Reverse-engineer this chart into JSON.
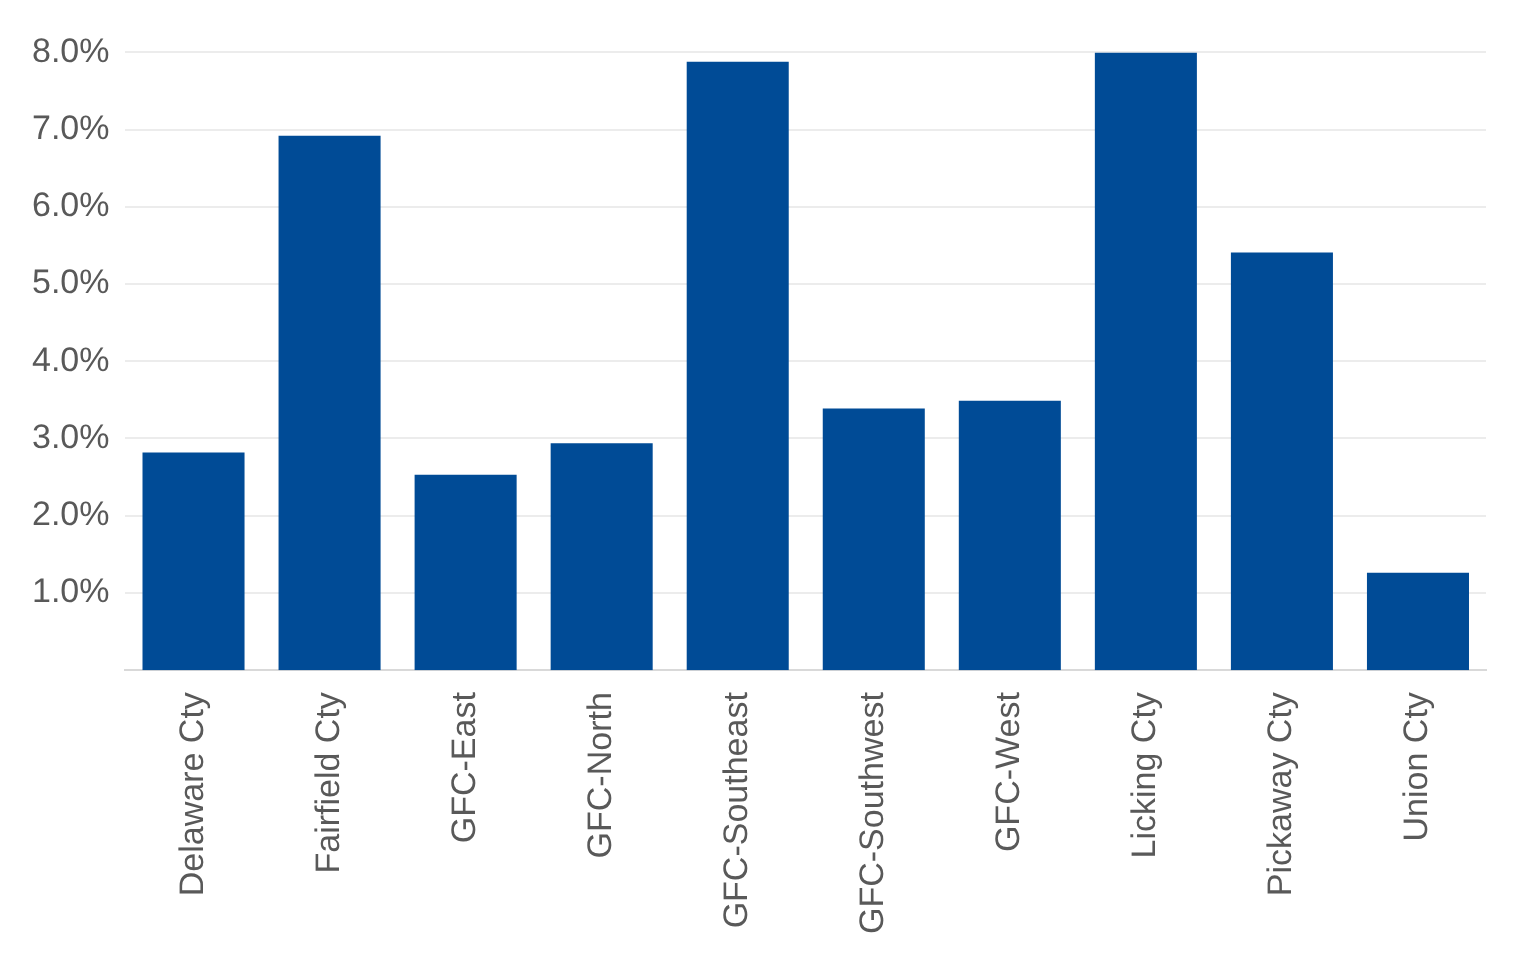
{
  "chart_data": {
    "type": "bar",
    "categories": [
      "Delaware Cty",
      "Fairfield Cty",
      "GFC-East",
      "GFC-North",
      "GFC-Southeast",
      "GFC-Southwest",
      "GFC-West",
      "Licking Cty",
      "Pickaway Cty",
      "Union Cty"
    ],
    "values": [
      2.82,
      6.92,
      2.53,
      2.94,
      7.88,
      3.39,
      3.49,
      8.0,
      5.41,
      1.26
    ],
    "color": "#004b96",
    "ylim": [
      0,
      8
    ],
    "yticks": [
      {
        "value": 1,
        "label": "1.0%"
      },
      {
        "value": 2,
        "label": "2.0%"
      },
      {
        "value": 3,
        "label": "3.0%"
      },
      {
        "value": 4,
        "label": "4.0%"
      },
      {
        "value": 5,
        "label": "5.0%"
      },
      {
        "value": 6,
        "label": "6.0%"
      },
      {
        "value": 7,
        "label": "7.0%"
      },
      {
        "value": 8,
        "label": "8.0%"
      }
    ],
    "grid": "y",
    "legend": false
  }
}
